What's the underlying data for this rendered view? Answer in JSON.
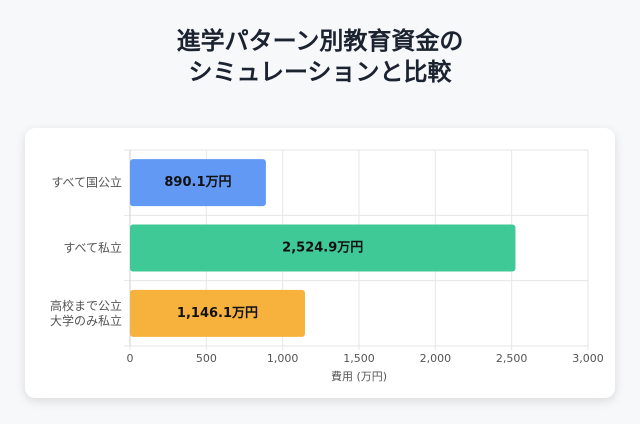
{
  "title_lines": [
    "進学パターン別教育資金の",
    "シミュレーションと比較"
  ],
  "chart_data": {
    "type": "bar",
    "orientation": "horizontal",
    "categories": [
      [
        "すべて国公立"
      ],
      [
        "すべて私立"
      ],
      [
        "高校まで公立",
        "大学のみ私立"
      ]
    ],
    "values": [
      890.1,
      2524.9,
      1146.1
    ],
    "value_labels": [
      "890.1万円",
      "2,524.9万円",
      "1,146.1万円"
    ],
    "colors": [
      "#6199f5",
      "#3fc996",
      "#f6b23d"
    ],
    "xlabel": "費用 (万円)",
    "xlim": [
      0,
      3000
    ],
    "xticks": [
      0,
      500,
      1000,
      1500,
      2000,
      2500,
      3000
    ],
    "xtick_labels": [
      "0",
      "500",
      "1,000",
      "1,500",
      "2,000",
      "2,500",
      "3,000"
    ],
    "grid": true
  }
}
